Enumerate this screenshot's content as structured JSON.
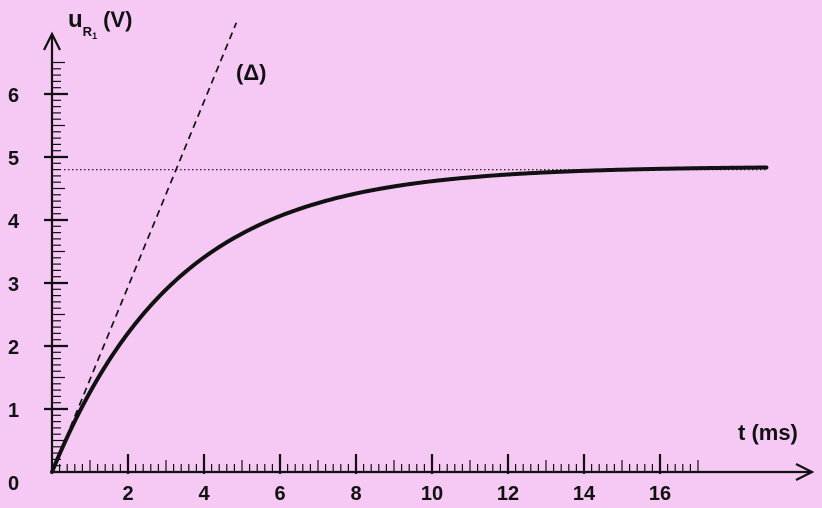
{
  "chart_data": {
    "type": "line",
    "ylabel": {
      "main": "u",
      "sub": "R",
      "subsub": "1",
      "unit": "(V)"
    },
    "xlabel": "t (ms)",
    "origin_label": "0",
    "xlim": [
      0,
      20.3
    ],
    "ylim": [
      0,
      6.9
    ],
    "x_ticks": [
      "2",
      "4",
      "6",
      "8",
      "10",
      "12",
      "14",
      "16"
    ],
    "y_ticks": [
      "1",
      "2",
      "3",
      "4",
      "5",
      "6"
    ],
    "x_minor_step": 0.2,
    "y_minor_step": 0.1,
    "series": [
      {
        "style": "solid",
        "E": 4.85,
        "tau_ms": 3.3,
        "t_end": 18.8
      }
    ],
    "tangent": {
      "label": "(Δ)",
      "slope_V_per_ms": 1.47,
      "t_end": 4.85,
      "style": "dashed"
    },
    "asymptote": {
      "value": 4.8,
      "style": "dotted",
      "t_end": 18.8
    }
  }
}
